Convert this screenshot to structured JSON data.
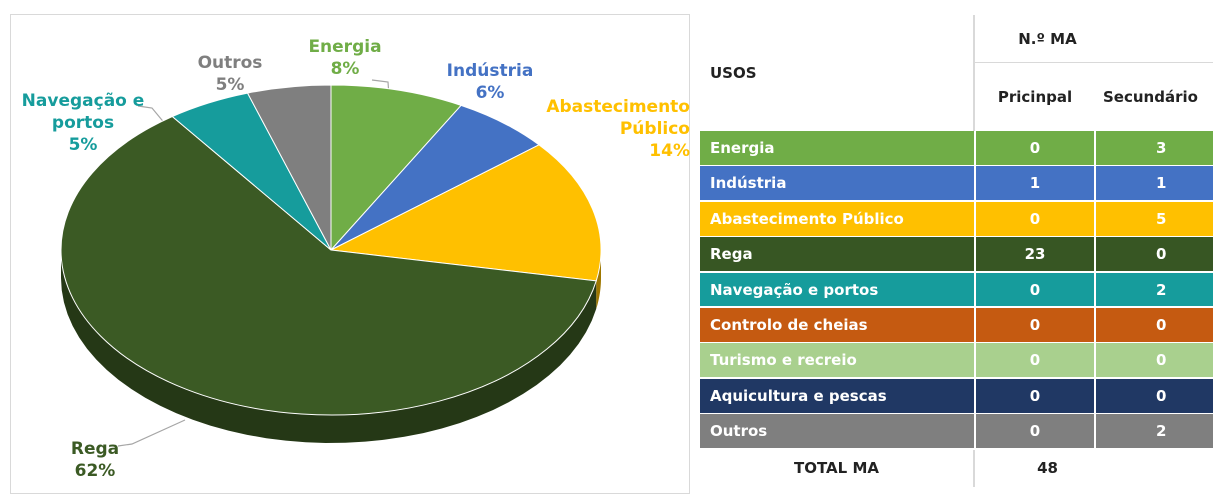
{
  "chart_data": {
    "type": "pie",
    "categories": [
      "Energia",
      "Indústria",
      "Abastecimento Público",
      "Rega",
      "Navegação e portos",
      "Outros"
    ],
    "values": [
      8,
      6,
      14,
      62,
      5,
      5
    ],
    "value_labels": [
      "8%",
      "6%",
      "14%",
      "62%",
      "5%",
      "5%"
    ],
    "colors": [
      "#70ad47",
      "#4472c4",
      "#ffc000",
      "#3b5a24",
      "#169c9c",
      "#7f7f7f"
    ]
  },
  "table": {
    "header": {
      "usos": "USOS",
      "group": "N.º MA",
      "columns": [
        "Pricinpal",
        "Secundário"
      ]
    },
    "rows": [
      {
        "name": "Energia",
        "color": "#70ad47",
        "values": [
          0,
          3
        ]
      },
      {
        "name": "Indústria",
        "color": "#4472c4",
        "values": [
          1,
          1
        ]
      },
      {
        "name": "Abastecimento Público",
        "color": "#ffc000",
        "values": [
          0,
          5
        ]
      },
      {
        "name": "Rega",
        "color": "#375623",
        "values": [
          23,
          0
        ]
      },
      {
        "name": "Navegação e portos",
        "color": "#169c9c",
        "values": [
          0,
          2
        ]
      },
      {
        "name": "Controlo de cheias",
        "color": "#c55a11",
        "values": [
          0,
          0
        ]
      },
      {
        "name": "Turismo e recreio",
        "color": "#a9d08e",
        "values": [
          0,
          0
        ]
      },
      {
        "name": "Aquicultura e pescas",
        "color": "#203864",
        "values": [
          0,
          0
        ]
      },
      {
        "name": "Outros",
        "color": "#7f7f7f",
        "values": [
          0,
          2
        ]
      }
    ],
    "total": {
      "label": "TOTAL MA",
      "value": 48
    }
  }
}
